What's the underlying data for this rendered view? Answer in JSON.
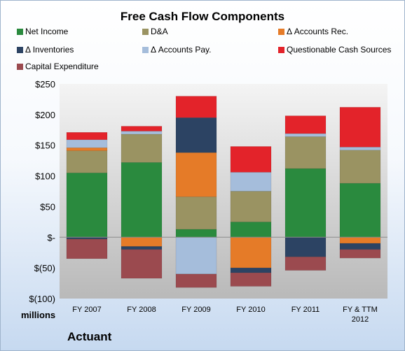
{
  "company": "Actuant",
  "units_label": "millions",
  "colors": {
    "Net Income": "#2a8a3e",
    "D&A": "#9a9362",
    "Δ Accounts Rec.": "#e57b28",
    "Δ Inventories": "#2c4363",
    "Δ Accounts Pay.": "#a5bddb",
    "Questionable Cash Sources": "#e3232a",
    "Capital Expenditure": "#9b4a4f"
  },
  "chart_data": {
    "type": "bar",
    "stacked": true,
    "title": "Free Cash Flow Components",
    "xlabel": "",
    "ylabel": "",
    "ylim": [
      -100,
      250
    ],
    "yticks": [
      -100,
      -50,
      0,
      50,
      100,
      150,
      200,
      250
    ],
    "yticklabels": [
      "$(100)",
      "$(50)",
      "$-",
      "$50",
      "$100",
      "$150",
      "$200",
      "$250"
    ],
    "grid": false,
    "legend_position": "top",
    "categories": [
      "FY 2007",
      "FY 2008",
      "FY 2009",
      "FY 2010",
      "FY 2011",
      "FY & TTM 2012"
    ],
    "series": [
      {
        "name": "Net Income",
        "values": [
          105,
          122,
          13,
          25,
          112,
          88
        ]
      },
      {
        "name": "D&A",
        "values": [
          36,
          46,
          53,
          50,
          52,
          54
        ]
      },
      {
        "name": "Δ Accounts Rec.",
        "values": [
          5,
          -15,
          72,
          -50,
          0,
          -10
        ]
      },
      {
        "name": "Δ Inventories",
        "values": [
          -3,
          -5,
          57,
          -8,
          -32,
          -10
        ]
      },
      {
        "name": "Δ Accounts Pay.",
        "values": [
          13,
          5,
          -60,
          31,
          5,
          5
        ]
      },
      {
        "name": "Questionable Cash Sources",
        "values": [
          12,
          8,
          35,
          42,
          29,
          65
        ]
      },
      {
        "name": "Capital Expenditure",
        "values": [
          -32,
          -47,
          -22,
          -22,
          -22,
          -14
        ]
      }
    ]
  }
}
